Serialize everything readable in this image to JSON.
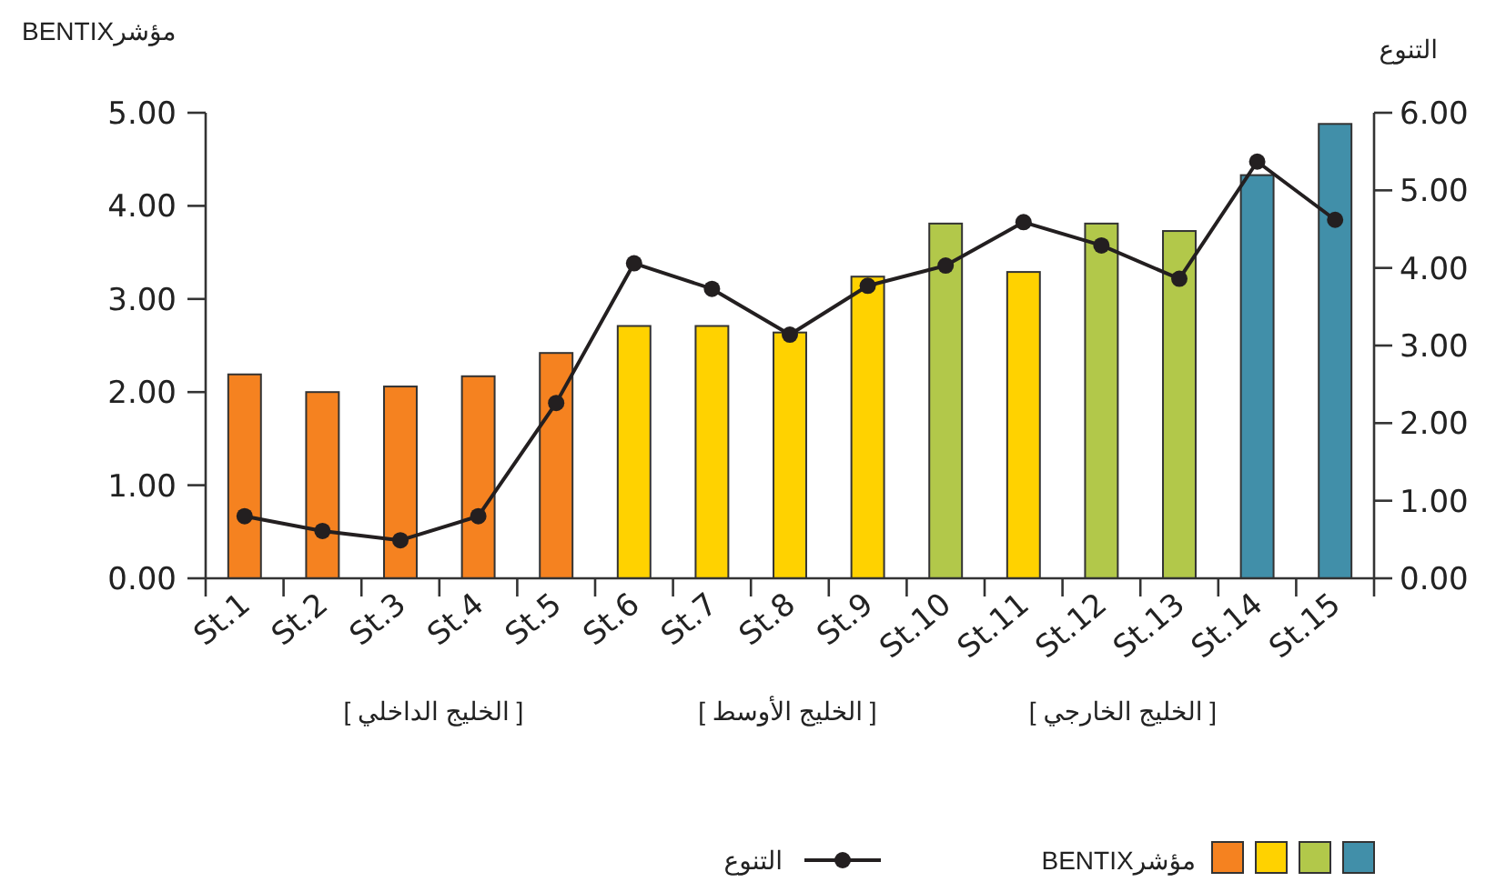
{
  "chart_data": {
    "type": "bar",
    "ylabel": "مؤشرBENTIX",
    "y2label": "التنوع",
    "categories": [
      "St.1",
      "St.2",
      "St.3",
      "St.4",
      "St.5",
      "St.6",
      "St.7",
      "St.8",
      "St.9",
      "St.10",
      "St.11",
      "St.12",
      "St.13",
      "St.14",
      "St.15"
    ],
    "series": [
      {
        "name": "مؤشرBENTIX",
        "colors": [
          "#f58220",
          "#f58220",
          "#f58220",
          "#f58220",
          "#f58220",
          "#ffd200",
          "#ffd200",
          "#ffd200",
          "#ffd200",
          "#b2c84a",
          "#ffd200",
          "#b2c84a",
          "#b2c84a",
          "#418fa9",
          "#418fa9"
        ],
        "values": [
          2.19,
          2.0,
          2.06,
          2.17,
          2.42,
          2.71,
          2.71,
          2.64,
          3.24,
          3.81,
          3.29,
          3.81,
          3.73,
          4.33,
          4.88
        ]
      },
      {
        "name": "التنوع",
        "type": "line",
        "axis": "y2",
        "color": "#231f20",
        "marker": "circle",
        "values": [
          0.8,
          0.61,
          0.49,
          0.8,
          2.26,
          4.06,
          3.73,
          3.14,
          3.77,
          4.03,
          4.59,
          4.29,
          3.86,
          5.37,
          4.62
        ]
      }
    ],
    "ylim": [
      0,
      5
    ],
    "yticks": [
      {
        "value": 0,
        "label": "0.00"
      },
      {
        "value": 1,
        "label": "1.00"
      },
      {
        "value": 2,
        "label": "2.00"
      },
      {
        "value": 3,
        "label": "3.00"
      },
      {
        "value": 4,
        "label": "4.00"
      },
      {
        "value": 5,
        "label": "5.00"
      }
    ],
    "y2lim": [
      0,
      6
    ],
    "y2ticks": [
      {
        "value": 0,
        "label": "0.00"
      },
      {
        "value": 1,
        "label": "1.00"
      },
      {
        "value": 2,
        "label": "2.00"
      },
      {
        "value": 3,
        "label": "3.00"
      },
      {
        "value": 4,
        "label": "4.00"
      },
      {
        "value": 5,
        "label": "5.00"
      },
      {
        "value": 6,
        "label": "6.00"
      }
    ],
    "annotations": [
      "[ الخليج الداخلي ]",
      "[ الخليج الأوسط ]",
      "[ الخليج الخارجي ]"
    ],
    "grid": false,
    "legend": "bottom"
  }
}
